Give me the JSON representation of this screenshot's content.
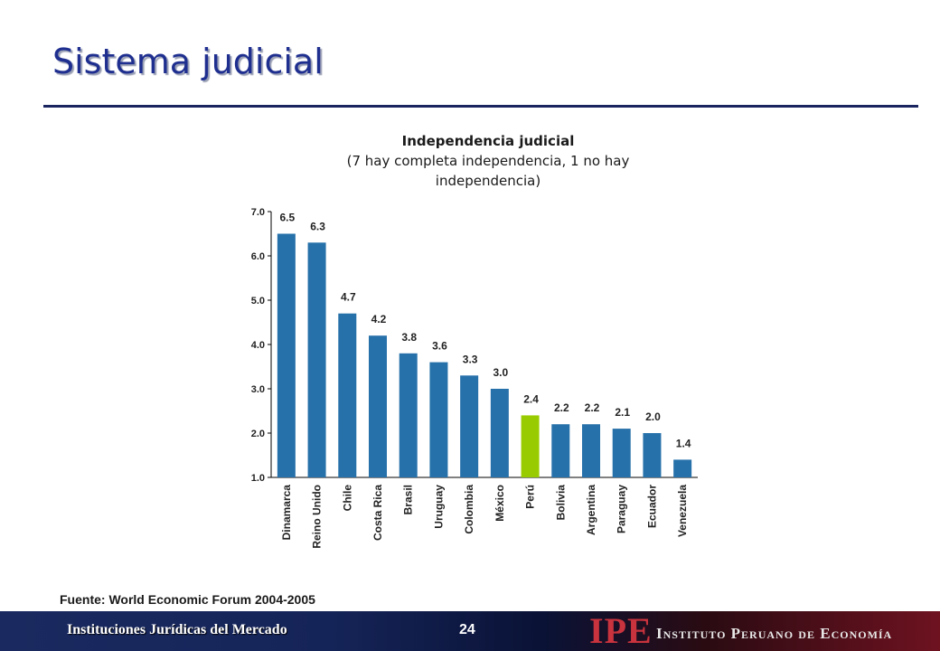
{
  "slide": {
    "title": "Sistema judicial",
    "source": "Fuente: World Economic Forum 2004-2005"
  },
  "footer": {
    "left_text": "Instituciones Jurídicas del Mercado",
    "page_number": "24",
    "logo_text": "IPE",
    "institute_name": "Instituto Peruano de Economía"
  },
  "colors": {
    "bar": "#2771aa",
    "highlight_bar": "#99cc00",
    "title": "#1f2f8f"
  },
  "chart_data": {
    "type": "bar",
    "title": "Independencia judicial",
    "subtitle": "(7 hay completa independencia, 1 no hay independencia)",
    "xlabel": "",
    "ylabel": "",
    "ylim": [
      1.0,
      7.0
    ],
    "yticks": [
      "1.0",
      "2.0",
      "3.0",
      "4.0",
      "5.0",
      "6.0",
      "7.0"
    ],
    "grid": false,
    "legend": "none",
    "categories": [
      "Dinamarca",
      "Reino Unido",
      "Chile",
      "Costa Rica",
      "Brasil",
      "Uruguay",
      "Colombia",
      "México",
      "Perú",
      "Bolivia",
      "Argentina",
      "Paraguay",
      "Ecuador",
      "Venezuela"
    ],
    "values": [
      6.5,
      6.3,
      4.7,
      4.2,
      3.8,
      3.6,
      3.3,
      3.0,
      2.4,
      2.2,
      2.2,
      2.1,
      2.0,
      1.4
    ],
    "value_labels": [
      "6.5",
      "6.3",
      "4.7",
      "4.2",
      "3.8",
      "3.6",
      "3.3",
      "3.0",
      "2.4",
      "2.2",
      "2.2",
      "2.1",
      "2.0",
      "1.4"
    ],
    "highlight": "Perú"
  }
}
